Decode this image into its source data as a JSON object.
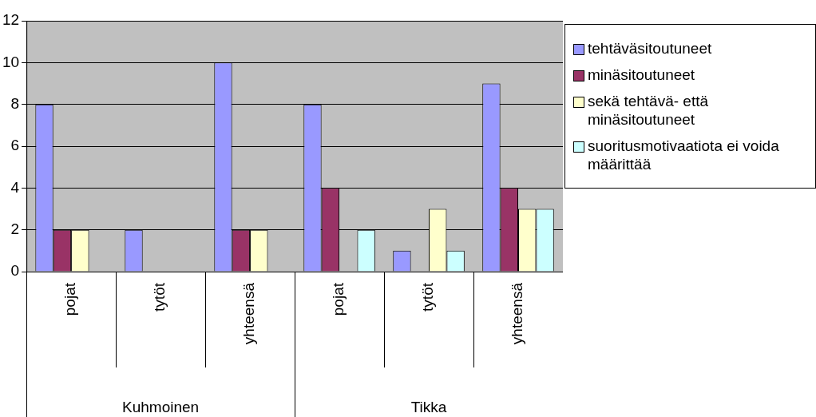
{
  "chart_data": {
    "type": "bar",
    "categories": [
      "pojat",
      "tytöt",
      "yhteensä",
      "pojat",
      "tytöt",
      "yhteensä"
    ],
    "series": [
      {
        "name": "tehtäväsitoutuneet",
        "color": "#9999ff",
        "values": [
          8,
          2,
          10,
          8,
          1,
          9
        ]
      },
      {
        "name": "minäsitoutuneet",
        "color": "#993366",
        "values": [
          2,
          0,
          2,
          4,
          0,
          4
        ]
      },
      {
        "name": "sekä tehtävä- että minäsitoutuneet",
        "color": "#ffffcc",
        "values": [
          2,
          0,
          2,
          0,
          3,
          3
        ]
      },
      {
        "name": "suoritusmotivaatiota ei voida määrittää",
        "color": "#ccffff",
        "values": [
          0,
          0,
          0,
          2,
          1,
          3
        ]
      }
    ],
    "ylim": [
      0,
      12
    ],
    "yticks": [
      0,
      2,
      4,
      6,
      8,
      10,
      12
    ],
    "grid": "y",
    "legend": "right",
    "annotations": [
      "Kuhmoinen",
      "Tikka"
    ]
  }
}
